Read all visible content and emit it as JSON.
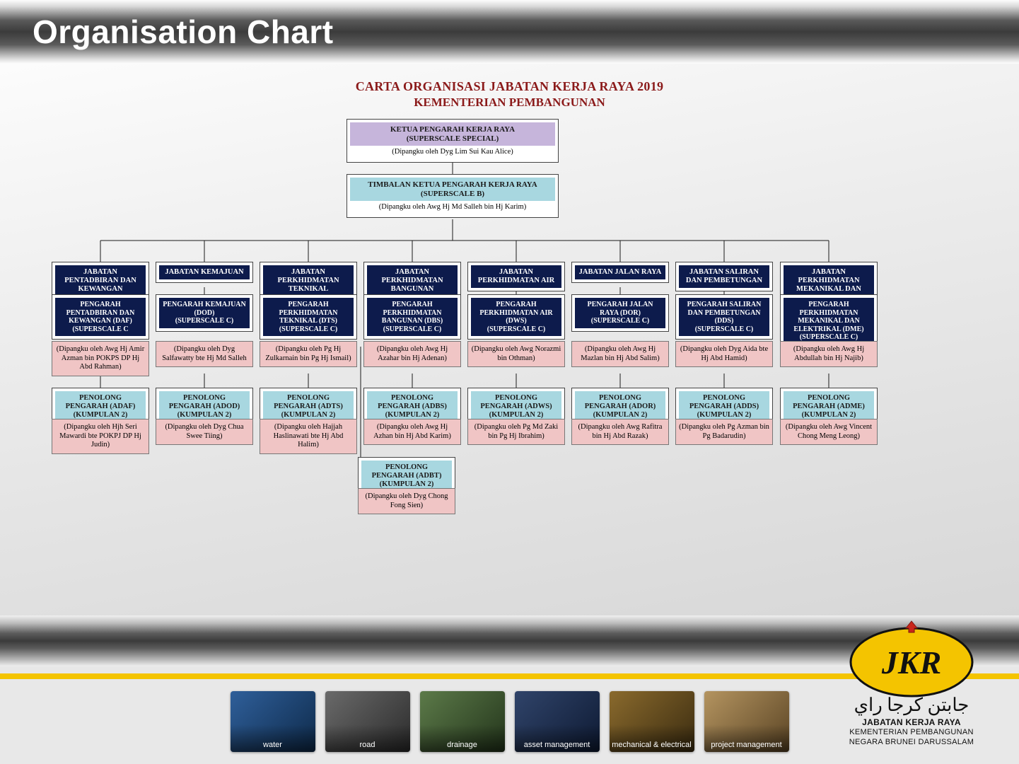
{
  "header": {
    "title": "Organisation Chart"
  },
  "chart": {
    "title_line1": "CARTA ORGANISASI JABATAN KERJA RAYA 2019",
    "title_line2": "KEMENTERIAN PEMBANGUNAN",
    "colors": {
      "title": "#8b1a1a",
      "lavender": "#c6b5db",
      "cyan": "#a8d7e0",
      "navy": "#0d1b4c",
      "pink": "#f0c5c5",
      "connector": "#1a1a1a",
      "page_bg_from": "#fcfcfc",
      "page_bg_to": "#d7d7d7"
    },
    "root": {
      "title": "KETUA PENGARAH KERJA RAYA",
      "scale": "(SUPERSCALE SPECIAL)",
      "officer": "(Dipangku oleh Dyg Lim Sui Kau Alice)"
    },
    "deputy": {
      "title": "TIMBALAN KETUA PENGARAH KERJA RAYA",
      "scale": "(SUPERSCALE B)",
      "officer": "(Dipangku oleh Awg Hj Md Salleh bin Hj Karim)"
    },
    "departments": [
      {
        "dept": "JABATAN PENTADBIRAN DAN KEWANGAN",
        "director_title": "PENGARAH PENTADBIRAN DAN KEWANGAN (DAF)",
        "director_scale": "(SUPERSCALE C",
        "director_officer": "(Dipangku oleh Awg Hj Amir Azman bin POKPS DP Hj Abd Rahman)",
        "assistant_title": "PENOLONG PENGARAH (ADAF)",
        "assistant_group": "(KUMPULAN 2)",
        "assistant_officer": "(Dipangku oleh Hjh Seri Mawardi bte POKPJ DP Hj Judin)"
      },
      {
        "dept": "JABATAN KEMAJUAN",
        "director_title": "PENGARAH KEMAJUAN (DOD)",
        "director_scale": "(SUPERSCALE C)",
        "director_officer": "(Dipangku oleh Dyg Salfawatty bte Hj Md Salleh",
        "assistant_title": "PENOLONG PENGARAH (ADOD)",
        "assistant_group": "(KUMPULAN 2)",
        "assistant_officer": "(Dipangku oleh Dyg Chua Swee Tiing)"
      },
      {
        "dept": "JABATAN PERKHIDMATAN TEKNIKAL",
        "director_title": "PENGARAH PERKHIDMATAN TEKNIKAL (DTS)",
        "director_scale": "(SUPERSCALE C)",
        "director_officer": "(Dipangku oleh Pg Hj Zulkarnain bin Pg Hj Ismail)",
        "assistant_title": "PENOLONG PENGARAH (ADTS)",
        "assistant_group": "(KUMPULAN 2)",
        "assistant_officer": "(Dipangku oleh Hajjah Haslinawati bte Hj Abd Halim)"
      },
      {
        "dept": "JABATAN PERKHIDMATAN BANGUNAN",
        "director_title": "PENGARAH PERKHIDMATAN BANGUNAN (DBS)",
        "director_scale": "(SUPERSCALE C)",
        "director_officer": "(Dipangku oleh Awg Hj Azahar bin Hj Adenan)",
        "assistant_title": "PENOLONG PENGARAH (ADBS)",
        "assistant_group": "(KUMPULAN 2)",
        "assistant_officer": "(Dipangku oleh Awg Hj Azhan bin Hj Abd Karim)",
        "assistant2_title": "PENOLONG PENGARAH (ADBT)",
        "assistant2_group": "(KUMPULAN 2)",
        "assistant2_officer": "(Dipangku oleh Dyg Chong Fong Sien)"
      },
      {
        "dept": "JABATAN PERKHIDMATAN AIR",
        "director_title": "PENGARAH PERKHIDMATAN AIR (DWS)",
        "director_scale": "(SUPERSCALE C)",
        "director_officer": "(Dipangku oleh  Awg Norazmi bin Othman)",
        "assistant_title": "PENOLONG PENGARAH (ADWS)",
        "assistant_group": "(KUMPULAN 2)",
        "assistant_officer": "(Dipangku oleh Pg Md Zaki bin Pg Hj Ibrahim)"
      },
      {
        "dept": "JABATAN JALAN RAYA",
        "director_title": "PENGARAH JALAN RAYA (DOR)",
        "director_scale": "(SUPERSCALE C)",
        "director_officer": "(Dipangku oleh Awg Hj Mazlan bin Hj Abd Salim)",
        "assistant_title": "PENOLONG PENGARAH (ADOR)",
        "assistant_group": "(KUMPULAN 2)",
        "assistant_officer": "(Dipangku oleh Awg Rafitra bin Hj Abd Razak)"
      },
      {
        "dept": "JABATAN SALIRAN DAN PEMBETUNGAN",
        "director_title": "PENGARAH SALIRAN DAN PEMBETUNGAN (DDS)",
        "director_scale": "(SUPERSCALE C)",
        "director_officer": "(Dipangku oleh Dyg Aida bte Hj Abd Hamid)",
        "assistant_title": "PENOLONG PENGARAH (ADDS)",
        "assistant_group": "(KUMPULAN 2)",
        "assistant_officer": "(Dipangku oleh Pg Azman bin Pg Badarudin)"
      },
      {
        "dept": "JABATAN PERKHIDMATAN MEKANIKAL DAN ELEKTRIKAL",
        "director_title": "PENGARAH PERKHIDMATAN MEKANIKAL DAN ELEKTRIKAL (DME)",
        "director_scale": "(SUPERSCALE C)",
        "director_officer": "(Dipangku oleh Awg Hj Abdullah bin Hj Najib)",
        "assistant_title": "PENOLONG PENGARAH (ADME)",
        "assistant_group": "(KUMPULAN 2)",
        "assistant_officer": "(Dipangku oleh Awg Vincent Chong Meng Leong)"
      }
    ]
  },
  "thumbnails": [
    {
      "caption": "water",
      "tone": "blue"
    },
    {
      "caption": "road",
      "tone": "grey"
    },
    {
      "caption": "drainage",
      "tone": "green"
    },
    {
      "caption": "asset management",
      "tone": "navyx"
    },
    {
      "caption": "mechanical & electrical",
      "tone": "gold"
    },
    {
      "caption": "project management",
      "tone": "tan"
    }
  ],
  "logo": {
    "arabic": "جابتن كرجا راي",
    "line1": "JABATAN KERJA RAYA",
    "line2": "KEMENTERIAN PEMBANGUNAN",
    "line3": "NEGARA BRUNEI DARUSSALAM",
    "initials": "JKR"
  }
}
